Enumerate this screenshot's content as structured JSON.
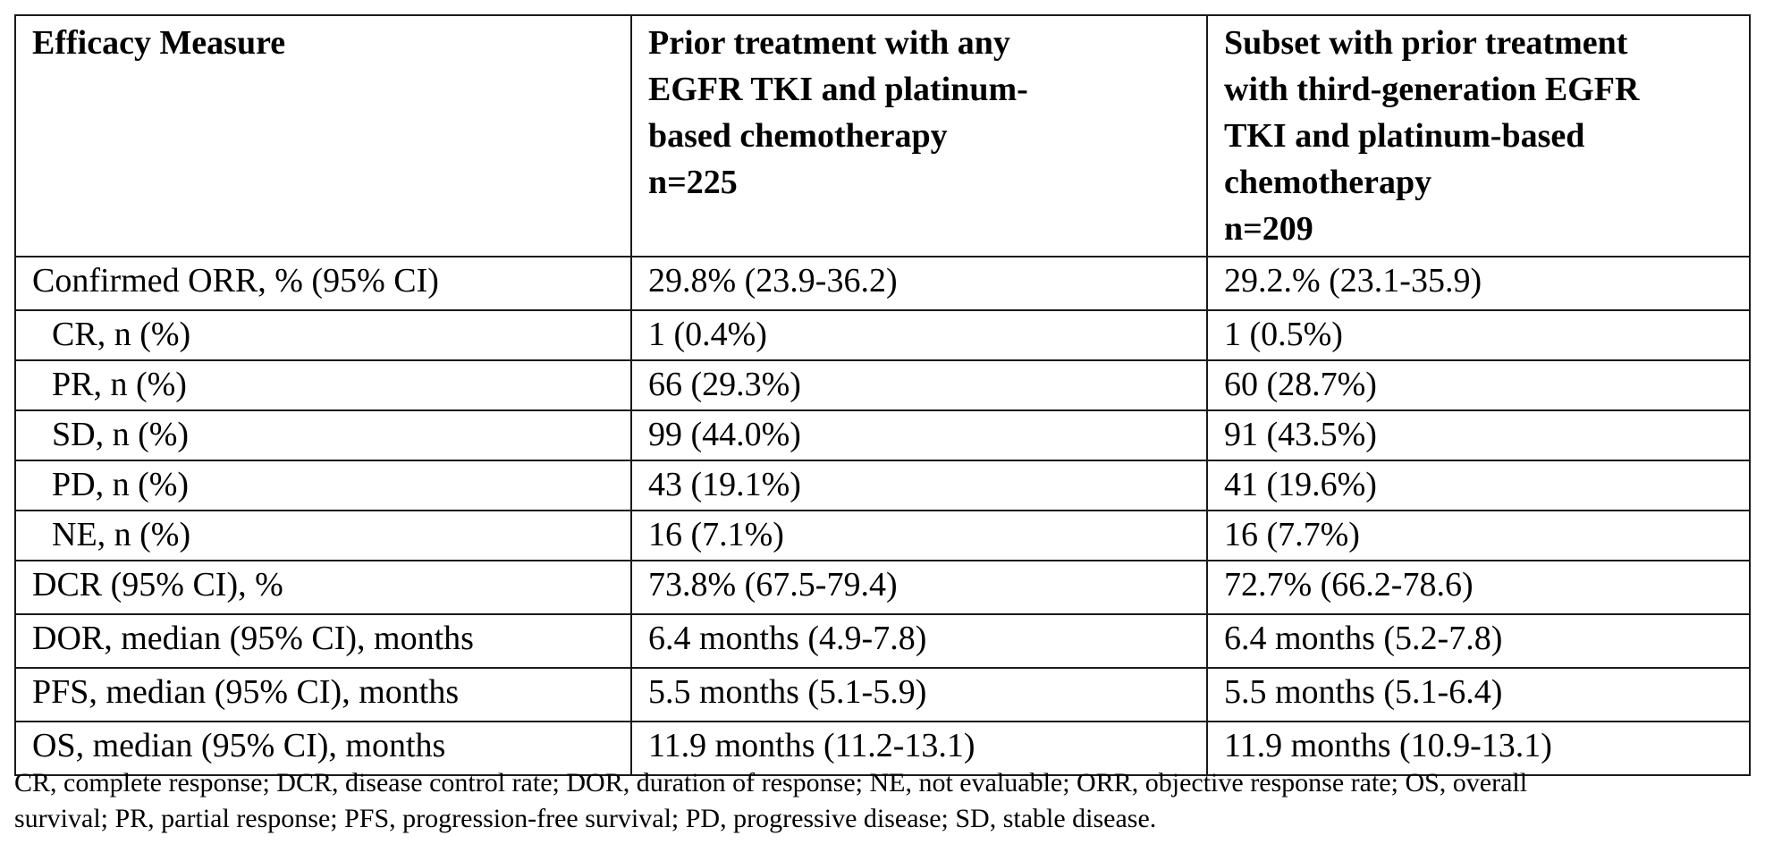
{
  "table": {
    "headers": {
      "col1": [
        "Efficacy Measure"
      ],
      "col2": [
        "Prior treatment with any",
        "EGFR TKI and platinum-",
        "based chemotherapy",
        "n=225"
      ],
      "col3": [
        "Subset with prior treatment",
        "with third-generation EGFR",
        "TKI and platinum-based",
        "chemotherapy",
        "n=209"
      ]
    },
    "rows": [
      {
        "measure": "Confirmed ORR, % (95% CI)",
        "any": "29.8% (23.9-36.2)",
        "third": "29.2.% (23.1-35.9)"
      },
      {
        "measure": "CR, n (%)",
        "any": "1 (0.4%)",
        "third": "1 (0.5%)"
      },
      {
        "measure": "PR, n (%)",
        "any": "66 (29.3%)",
        "third": "60 (28.7%)"
      },
      {
        "measure": "SD, n (%)",
        "any": "99 (44.0%)",
        "third": "91 (43.5%)"
      },
      {
        "measure": "PD, n (%)",
        "any": "43 (19.1%)",
        "third": "41 (19.6%)"
      },
      {
        "measure": "NE, n (%)",
        "any": "16 (7.1%)",
        "third": "16 (7.7%)"
      },
      {
        "measure": "DCR (95% CI), %",
        "any": "73.8% (67.5-79.4)",
        "third": "72.7% (66.2-78.6)"
      },
      {
        "measure": "DOR, median (95% CI), months",
        "any": "6.4 months (4.9-7.8)",
        "third": "6.4 months (5.2-7.8)"
      },
      {
        "measure": "PFS, median (95% CI), months",
        "any": "5.5 months (5.1-5.9)",
        "third": "5.5 months (5.1-6.4)"
      },
      {
        "measure": "OS, median (95% CI), months",
        "any": "11.9 months (11.2-13.1)",
        "third": "11.9 months (10.9-13.1)"
      }
    ]
  },
  "footnote": {
    "line1": "CR, complete response; DCR, disease control rate; DOR, duration of response; NE, not evaluable; ORR, objective response rate; OS, overall",
    "line2": "survival; PR, partial response; PFS, progression-free survival; PD, progressive disease; SD, stable disease."
  }
}
